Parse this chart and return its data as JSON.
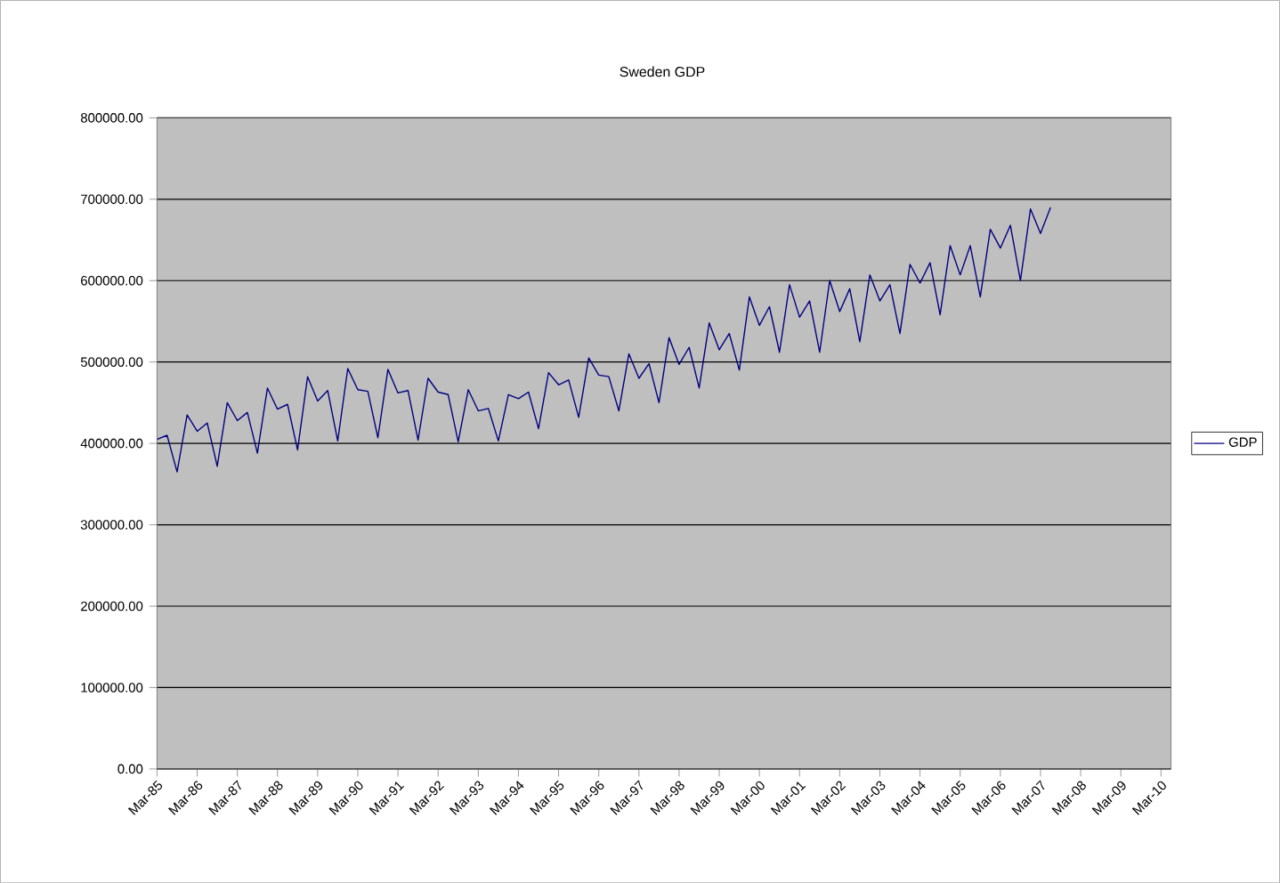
{
  "chart_data": {
    "type": "line",
    "title": "Sweden GDP",
    "categories": [
      "Mar-85",
      null,
      null,
      null,
      "Mar-86",
      null,
      null,
      null,
      "Mar-87",
      null,
      null,
      null,
      "Mar-88",
      null,
      null,
      null,
      "Mar-89",
      null,
      null,
      null,
      "Mar-90",
      null,
      null,
      null,
      "Mar-91",
      null,
      null,
      null,
      "Mar-92",
      null,
      null,
      null,
      "Mar-93",
      null,
      null,
      null,
      "Mar-94",
      null,
      null,
      null,
      "Mar-95",
      null,
      null,
      null,
      "Mar-96",
      null,
      null,
      null,
      "Mar-97",
      null,
      null,
      null,
      "Mar-98",
      null,
      null,
      null,
      "Mar-99",
      null,
      null,
      null,
      "Mar-00",
      null,
      null,
      null,
      "Mar-01",
      null,
      null,
      null,
      "Mar-02",
      null,
      null,
      null,
      "Mar-03",
      null,
      null,
      null,
      "Mar-04",
      null,
      null,
      null,
      "Mar-05",
      null,
      null,
      null,
      "Mar-06",
      null,
      null,
      null,
      "Mar-07",
      null,
      null,
      null,
      "Mar-08",
      null,
      null,
      null,
      "Mar-09",
      null,
      null,
      null,
      "Mar-10",
      null
    ],
    "series": [
      {
        "name": "GDP",
        "color": "#000080",
        "values": [
          405000,
          410000,
          365000,
          435000,
          415000,
          425000,
          372000,
          450000,
          428000,
          438000,
          388000,
          468000,
          442000,
          448000,
          392000,
          482000,
          452000,
          465000,
          403000,
          492000,
          466000,
          464000,
          407000,
          491000,
          462000,
          465000,
          404000,
          480000,
          463000,
          460000,
          402000,
          466000,
          440000,
          443000,
          403000,
          460000,
          455000,
          463000,
          418000,
          487000,
          472000,
          478000,
          432000,
          505000,
          484000,
          482000,
          440000,
          510000,
          480000,
          498000,
          450000,
          530000,
          497000,
          518000,
          468000,
          548000,
          515000,
          535000,
          490000,
          580000,
          545000,
          568000,
          512000,
          595000,
          555000,
          575000,
          512000,
          600000,
          562000,
          590000,
          525000,
          607000,
          575000,
          595000,
          535000,
          620000,
          597000,
          622000,
          558000,
          643000,
          607000,
          643000,
          580000,
          663000,
          640000,
          668000,
          600000,
          688000,
          658000,
          690000,
          null,
          null,
          null,
          null,
          null,
          null,
          null,
          null,
          null,
          null,
          null,
          null
        ]
      }
    ],
    "ylim": [
      0,
      800000
    ],
    "yticks": [
      {
        "value": 0,
        "label": "0.00"
      },
      {
        "value": 100000,
        "label": "100000.00"
      },
      {
        "value": 200000,
        "label": "200000.00"
      },
      {
        "value": 300000,
        "label": "300000.00"
      },
      {
        "value": 400000,
        "label": "400000.00"
      },
      {
        "value": 500000,
        "label": "500000.00"
      },
      {
        "value": 600000,
        "label": "600000.00"
      },
      {
        "value": 700000,
        "label": "700000.00"
      },
      {
        "value": 800000,
        "label": "800000.00"
      }
    ],
    "grid": "y",
    "legend": "right",
    "marker": "none",
    "line_style": "solid"
  }
}
